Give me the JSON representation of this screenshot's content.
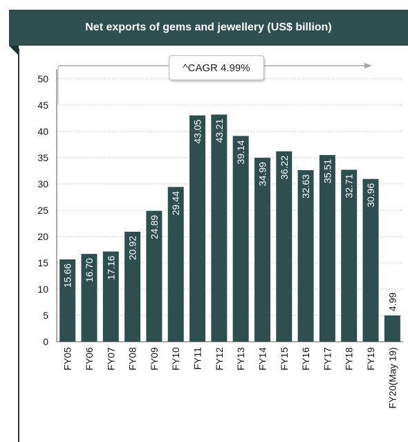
{
  "colors": {
    "banner": "#2e4e4f",
    "bar": "#2e4e4f",
    "bar_label": "#ffffff",
    "axis_text": "#111111",
    "grid": "#cfcfcf"
  },
  "cagr_label": "^CAGR 4.99%",
  "chart_data": {
    "type": "bar",
    "title": "Net exports of gems and jewellery (US$ billion)",
    "xlabel": "",
    "ylabel": "",
    "ylim": [
      0,
      50
    ],
    "yticks": [
      0,
      5,
      10,
      15,
      20,
      25,
      30,
      35,
      40,
      45,
      50
    ],
    "grid": true,
    "categories": [
      "FY05",
      "FY06",
      "FY07",
      "FY08",
      "FY09",
      "FY10",
      "FY11",
      "FY12",
      "FY13",
      "FY14",
      "FY15",
      "FY16",
      "FY17",
      "FY18",
      "FY19",
      "FY20(May 19)"
    ],
    "values": [
      15.66,
      16.7,
      17.16,
      20.92,
      24.89,
      29.44,
      43.05,
      43.21,
      39.14,
      34.99,
      36.22,
      32.63,
      35.51,
      32.71,
      30.96,
      4.99
    ],
    "value_labels": [
      "15.66",
      "16.70",
      "17.16",
      "20.92",
      "24.89",
      "29.44",
      "43.05",
      "43.21",
      "39.14",
      "34.99",
      "36.22",
      "32.63",
      "35.51",
      "32.71",
      "30.96",
      "4.99"
    ]
  }
}
